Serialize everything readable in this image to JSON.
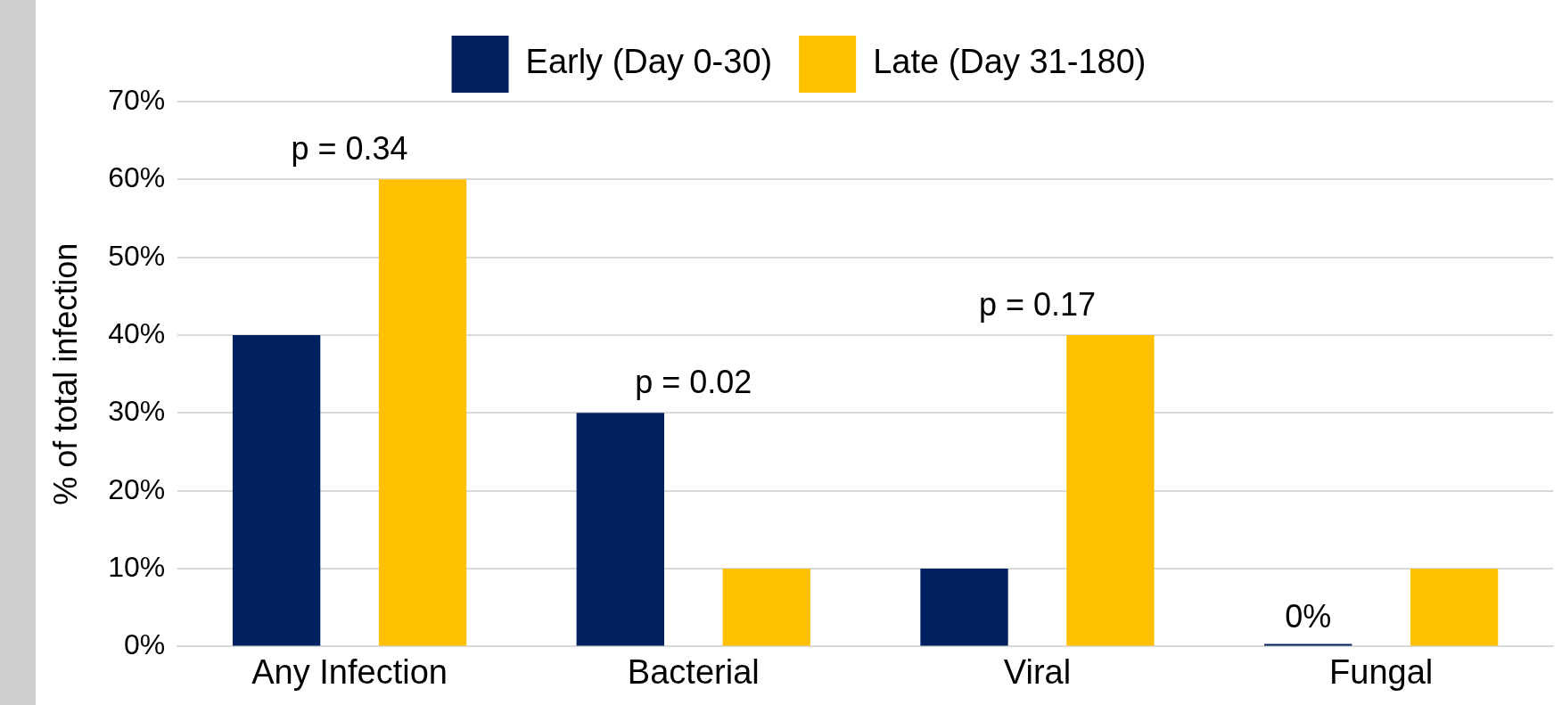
{
  "chart_data": {
    "type": "bar",
    "ylabel": "% of total infection",
    "categories": [
      "Any Infection",
      "Bacterial",
      "Viral",
      "Fungal"
    ],
    "series": [
      {
        "name": "Early (Day 0-30)",
        "color": "#002060",
        "values": [
          40,
          30,
          10,
          0
        ],
        "value_labels": [
          null,
          null,
          null,
          "0%"
        ]
      },
      {
        "name": "Late (Day 31-180)",
        "color": "#ffc000",
        "values": [
          60,
          10,
          40,
          10
        ]
      }
    ],
    "ylim": [
      0,
      70
    ],
    "yticks": [
      {
        "value": 0,
        "label": "0%"
      },
      {
        "value": 10,
        "label": "10%"
      },
      {
        "value": 20,
        "label": "20%"
      },
      {
        "value": 30,
        "label": "30%"
      },
      {
        "value": 40,
        "label": "40%"
      },
      {
        "value": 50,
        "label": "50%"
      },
      {
        "value": 60,
        "label": "60%"
      },
      {
        "value": 70,
        "label": "70%"
      }
    ],
    "annotations": [
      "p = 0.34",
      "p = 0.02",
      "p = 0.17"
    ],
    "grid": "y",
    "legend": "top"
  }
}
